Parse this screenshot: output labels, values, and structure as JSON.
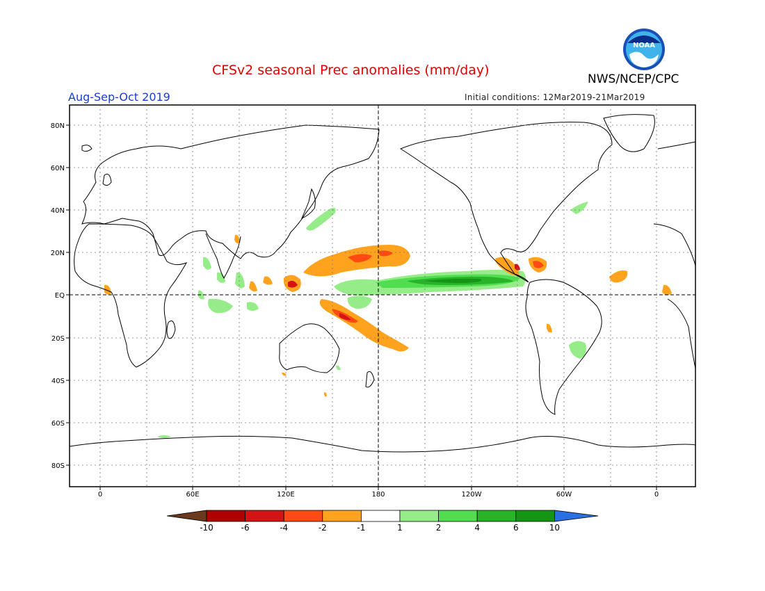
{
  "title": "CFSv2 seasonal Prec anomalies (mm/day)",
  "agency": "NWS/NCEP/CPC",
  "logo_text": "NOAA",
  "season": "Aug-Sep-Oct 2019",
  "initial_conditions": "Initial conditions: 12Mar2019-21Mar2019",
  "map": {
    "lat_labels": [
      "80N",
      "60N",
      "40N",
      "20N",
      "EQ",
      "20S",
      "40S",
      "60S",
      "80S"
    ],
    "lon_labels": [
      "0",
      "60E",
      "120E",
      "180",
      "120W",
      "60W",
      "0"
    ]
  },
  "legend": {
    "labels": [
      "-10",
      "-6",
      "-4",
      "-2",
      "-1",
      "1",
      "2",
      "4",
      "6",
      "10"
    ],
    "colors": [
      "#6b3a1e",
      "#b00000",
      "#d41414",
      "#ff4a14",
      "#ffa21e",
      "#ffffff",
      "#96ec88",
      "#50de50",
      "#28b428",
      "#149614",
      "#2a70e0"
    ]
  }
}
